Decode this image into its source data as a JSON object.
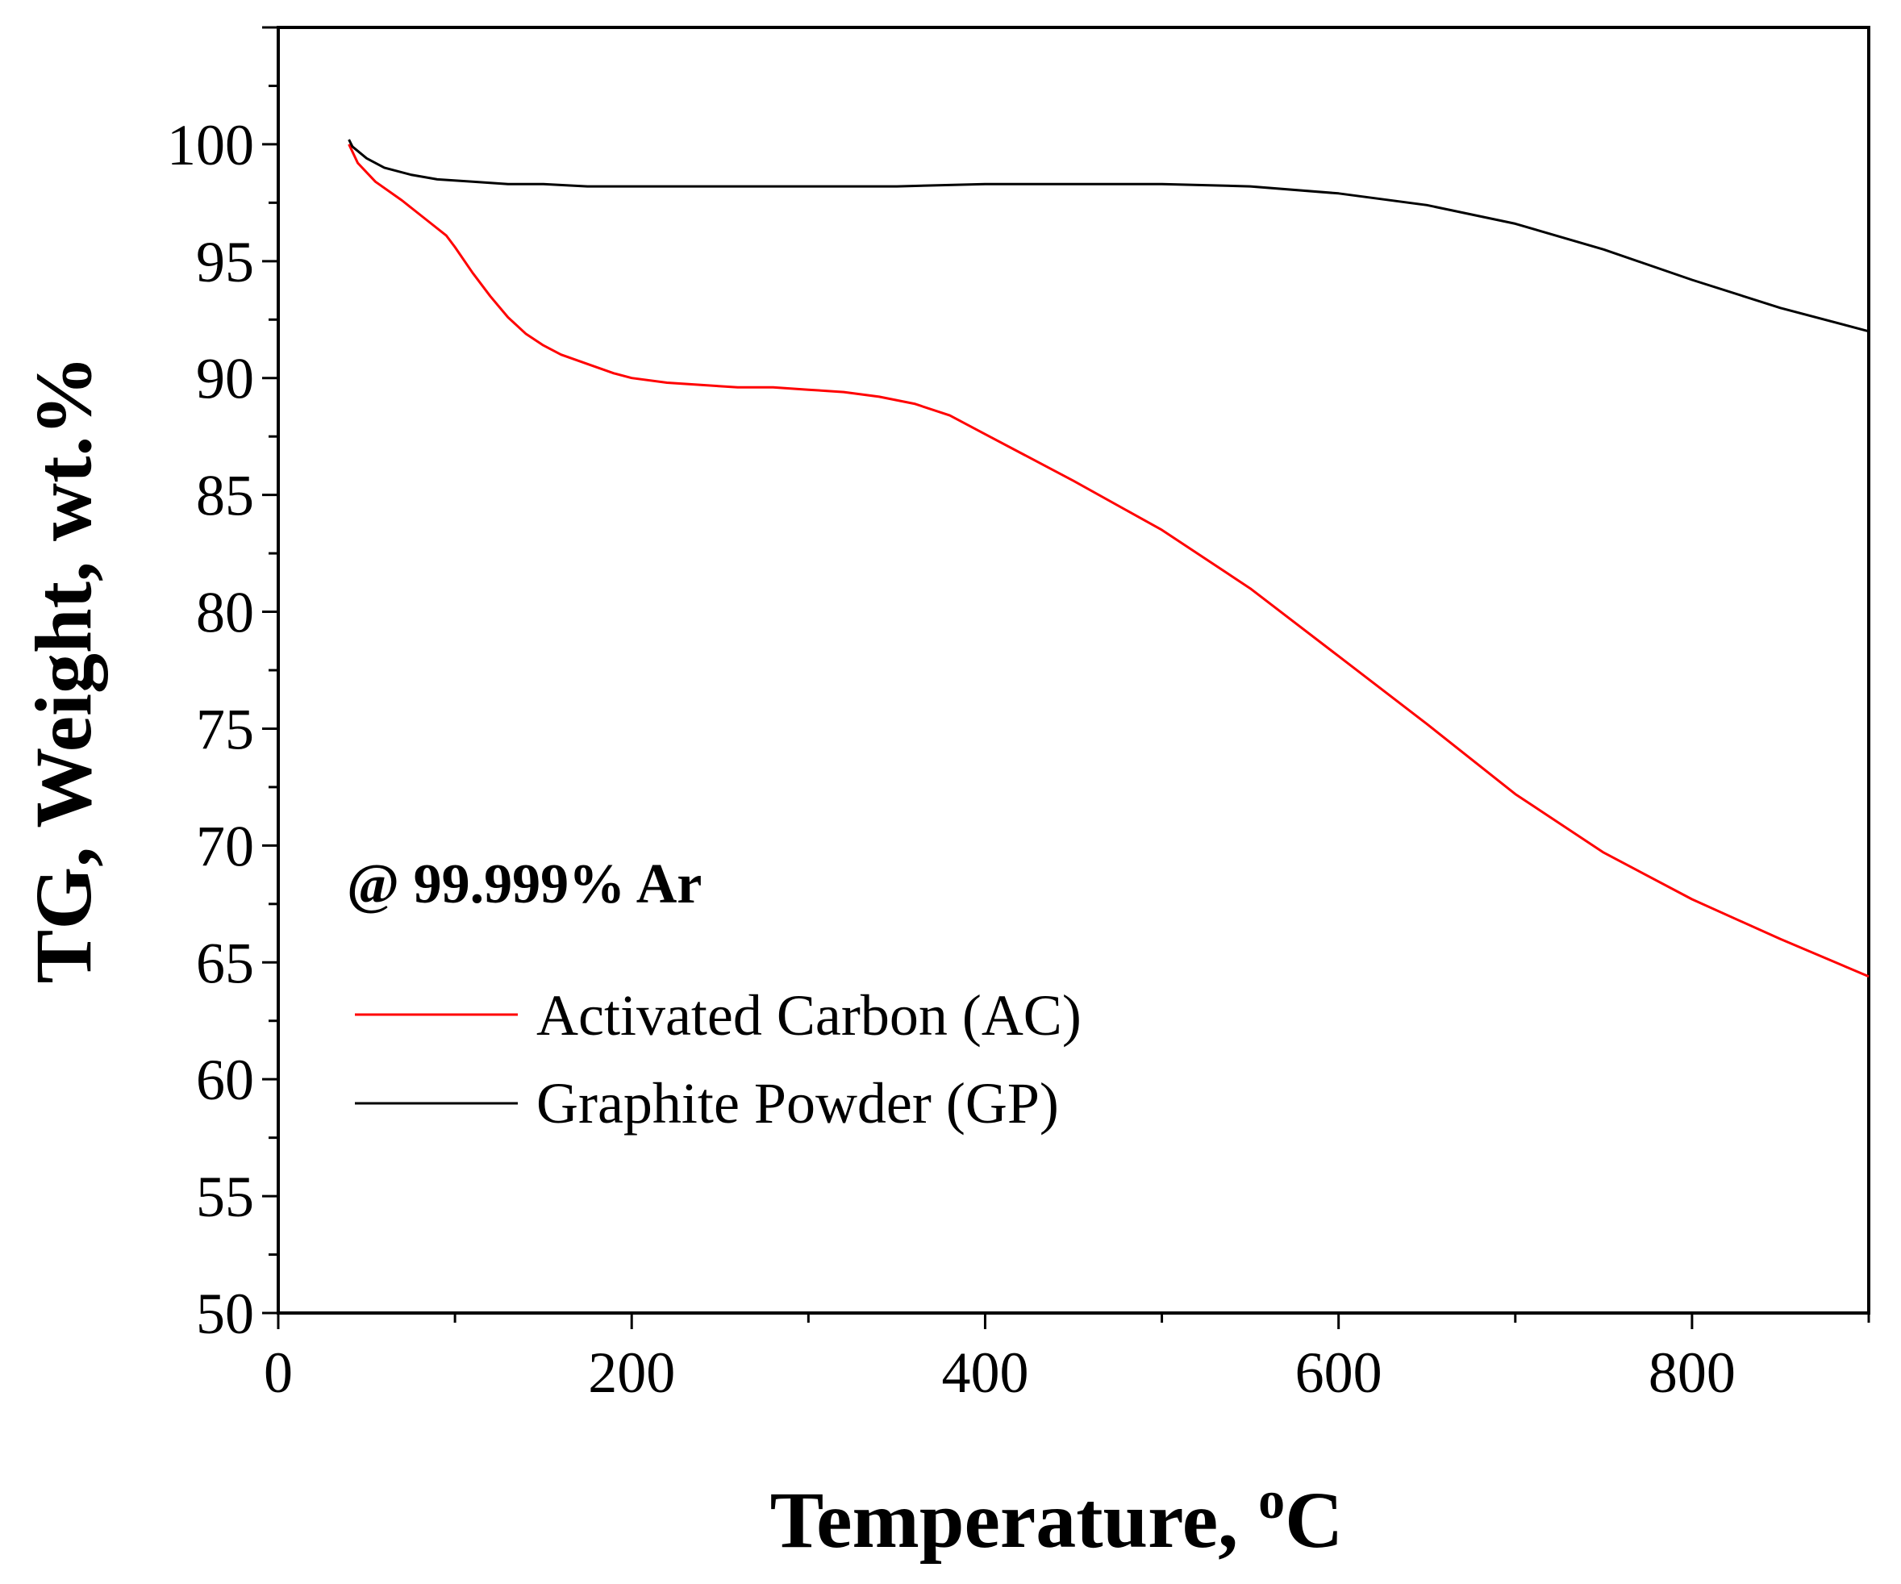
{
  "chart_data": {
    "type": "line",
    "title": "",
    "xlabel": "Temperature, ",
    "xlabel_superscript": "o",
    "xlabel_unit": "C",
    "ylabel": "TG, Weight, wt.%",
    "xlim": [
      0,
      900
    ],
    "ylim": [
      50,
      105
    ],
    "x_ticks": [
      "0",
      "200",
      "400",
      "600",
      "800"
    ],
    "x_tick_values": [
      0,
      200,
      400,
      600,
      800
    ],
    "y_ticks": [
      "50",
      "55",
      "60",
      "65",
      "70",
      "75",
      "80",
      "85",
      "90",
      "95",
      "100"
    ],
    "y_tick_values": [
      50,
      55,
      60,
      65,
      70,
      75,
      80,
      85,
      90,
      95,
      100
    ],
    "annotation": "@ 99.999% Ar",
    "grid": false,
    "legend_position": "lower-left",
    "series": [
      {
        "name": "Activated Carbon (AC)",
        "color": "#ff0000",
        "x": [
          40,
          45,
          55,
          70,
          85,
          95,
          100,
          110,
          120,
          130,
          140,
          150,
          160,
          175,
          190,
          200,
          220,
          240,
          260,
          280,
          300,
          320,
          340,
          360,
          380,
          400,
          450,
          500,
          550,
          600,
          650,
          700,
          750,
          800,
          850,
          900
        ],
        "y": [
          100.0,
          99.2,
          98.4,
          97.6,
          96.7,
          96.1,
          95.6,
          94.5,
          93.5,
          92.6,
          91.9,
          91.4,
          91.0,
          90.6,
          90.2,
          90.0,
          89.8,
          89.7,
          89.6,
          89.6,
          89.5,
          89.4,
          89.2,
          88.9,
          88.4,
          87.6,
          85.6,
          83.5,
          81.0,
          78.1,
          75.2,
          72.2,
          69.7,
          67.7,
          66.0,
          64.4
        ]
      },
      {
        "name": "Graphite Powder (GP)",
        "color": "#000000",
        "x": [
          40,
          42,
          50,
          60,
          75,
          90,
          110,
          130,
          150,
          175,
          200,
          250,
          300,
          350,
          400,
          450,
          500,
          550,
          600,
          650,
          700,
          750,
          800,
          850,
          900
        ],
        "y": [
          100.2,
          99.9,
          99.4,
          99.0,
          98.7,
          98.5,
          98.4,
          98.3,
          98.3,
          98.2,
          98.2,
          98.2,
          98.2,
          98.2,
          98.3,
          98.3,
          98.3,
          98.2,
          97.9,
          97.4,
          96.6,
          95.5,
          94.2,
          93.0,
          92.0
        ]
      }
    ]
  }
}
